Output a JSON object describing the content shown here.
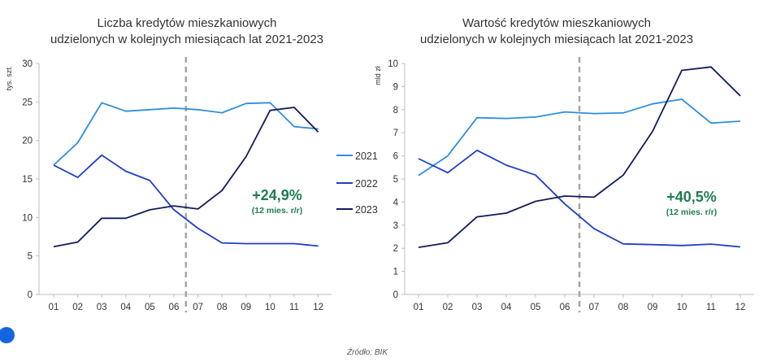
{
  "colors": {
    "2021": "#2e8fdc",
    "2022": "#1f3fc4",
    "2023": "#131a5c",
    "accent": "#1e7d4f",
    "divider": "#a6a6a6",
    "bullet": "#1565e0"
  },
  "legend": [
    "2021",
    "2022",
    "2023"
  ],
  "source": "Źródło: BIK",
  "chart_data": [
    {
      "type": "line",
      "title": [
        "Liczba kredytów mieszkaniowych",
        "udzielonych w kolejnych miesiącach lat 2021-2023"
      ],
      "ylabel": "tys. szt.",
      "categories": [
        "01",
        "02",
        "03",
        "04",
        "05",
        "06",
        "07",
        "08",
        "09",
        "10",
        "11",
        "12"
      ],
      "ylim": [
        0,
        30
      ],
      "yticks": [
        0,
        5,
        10,
        15,
        20,
        25,
        30
      ],
      "series": [
        {
          "name": "2021",
          "values": [
            16.8,
            19.7,
            24.9,
            23.8,
            24.0,
            24.2,
            24.0,
            23.6,
            24.8,
            24.9,
            21.8,
            21.5
          ]
        },
        {
          "name": "2022",
          "values": [
            16.8,
            15.2,
            18.1,
            16.0,
            14.8,
            11.0,
            8.6,
            6.7,
            6.6,
            6.6,
            6.6,
            6.3
          ]
        },
        {
          "name": "2023",
          "values": [
            6.2,
            6.8,
            9.9,
            9.9,
            11.0,
            11.5,
            11.1,
            13.5,
            17.9,
            23.9,
            24.3,
            21.1
          ]
        }
      ],
      "annotation": {
        "value": "+24,9%",
        "note": "(12 mies. r/r)"
      },
      "grid": false
    },
    {
      "type": "line",
      "title": [
        "Wartość kredytów mieszkaniowych",
        "udzielonych w kolejnych miesiącach lat 2021-2023"
      ],
      "ylabel": "mld zł",
      "categories": [
        "01",
        "02",
        "03",
        "04",
        "05",
        "06",
        "07",
        "08",
        "09",
        "10",
        "11",
        "12"
      ],
      "ylim": [
        0,
        10
      ],
      "yticks": [
        0,
        1,
        2,
        3,
        4,
        5,
        6,
        7,
        8,
        9,
        10
      ],
      "series": [
        {
          "name": "2021",
          "values": [
            5.15,
            6.0,
            7.65,
            7.62,
            7.68,
            7.9,
            7.83,
            7.86,
            8.25,
            8.45,
            7.42,
            7.5
          ]
        },
        {
          "name": "2022",
          "values": [
            5.88,
            5.27,
            6.24,
            5.6,
            5.17,
            3.92,
            2.85,
            2.19,
            2.16,
            2.12,
            2.18,
            2.06
          ]
        },
        {
          "name": "2023",
          "values": [
            2.04,
            2.24,
            3.36,
            3.52,
            4.03,
            4.26,
            4.21,
            5.17,
            7.06,
            9.7,
            9.85,
            8.6
          ]
        }
      ],
      "annotation": {
        "value": "+40,5%",
        "note": "(12 mies. r/r)"
      },
      "grid": false
    }
  ]
}
